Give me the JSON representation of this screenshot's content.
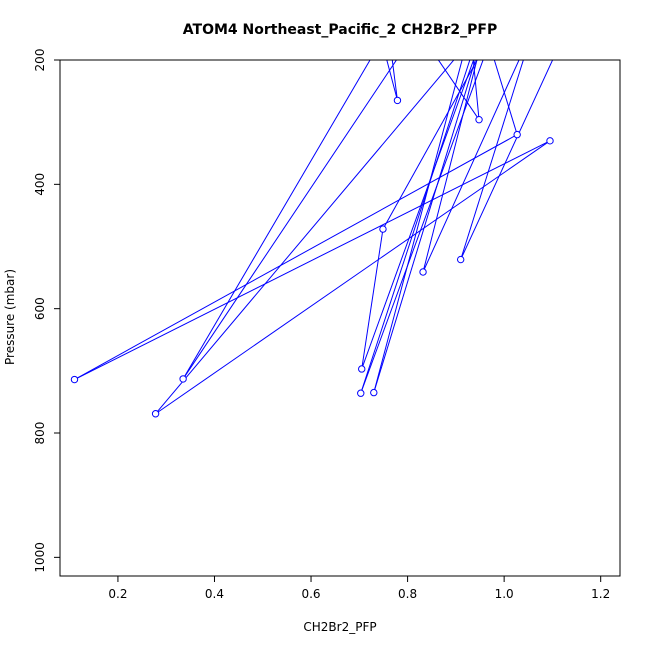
{
  "chart_data": {
    "type": "line",
    "title": "ATOM4 Northeast_Pacific_2 CH2Br2_PFP",
    "xlabel": "CH2Br2_PFP",
    "ylabel": "Pressure (mbar)",
    "xlim": [
      0.08,
      1.24
    ],
    "ylim": [
      1030,
      200
    ],
    "y_axis_inverted": true,
    "xticks": [
      0.2,
      0.4,
      0.6,
      0.8,
      1.0,
      1.2
    ],
    "xtick_labels": [
      "0.2",
      "0.4",
      "0.6",
      "0.8",
      "1.0",
      "1.2"
    ],
    "yticks": [
      200,
      400,
      600,
      800,
      1000
    ],
    "ytick_labels": [
      "200",
      "400",
      "600",
      "800",
      "1000"
    ],
    "grid": false,
    "legend": "none",
    "series": [
      {
        "color": "#0000ff",
        "marker": "open-circle",
        "points": [
          {
            "x": 0.74,
            "y": 150,
            "marker": false
          },
          {
            "x": 0.779,
            "y": 265,
            "marker": true
          },
          {
            "x": 0.76,
            "y": 150,
            "marker": false
          },
          {
            "x": 0.335,
            "y": 713,
            "marker": true
          },
          {
            "x": 0.82,
            "y": 150,
            "marker": false
          },
          {
            "x": 0.948,
            "y": 296,
            "marker": true
          },
          {
            "x": 0.93,
            "y": 150,
            "marker": false
          },
          {
            "x": 0.73,
            "y": 735,
            "marker": true
          },
          {
            "x": 0.96,
            "y": 150,
            "marker": false
          },
          {
            "x": 1.027,
            "y": 320,
            "marker": true
          },
          {
            "x": 0.11,
            "y": 714,
            "marker": true
          },
          {
            "x": 1.095,
            "y": 330,
            "marker": true
          },
          {
            "x": 0.278,
            "y": 769,
            "marker": true
          },
          {
            "x": 0.95,
            "y": 150,
            "marker": false
          },
          {
            "x": 0.703,
            "y": 736,
            "marker": true
          },
          {
            "x": 0.98,
            "y": 150,
            "marker": false
          },
          {
            "x": 0.749,
            "y": 472,
            "marker": true
          },
          {
            "x": 0.705,
            "y": 697,
            "marker": true
          },
          {
            "x": 0.96,
            "y": 150,
            "marker": false
          },
          {
            "x": 0.832,
            "y": 541,
            "marker": true
          },
          {
            "x": 1.06,
            "y": 150,
            "marker": false
          },
          {
            "x": 0.91,
            "y": 521,
            "marker": true
          },
          {
            "x": 1.13,
            "y": 150,
            "marker": false
          }
        ]
      }
    ]
  },
  "colors": {
    "series": "#0000ff",
    "axis": "#000000",
    "background": "#ffffff"
  }
}
